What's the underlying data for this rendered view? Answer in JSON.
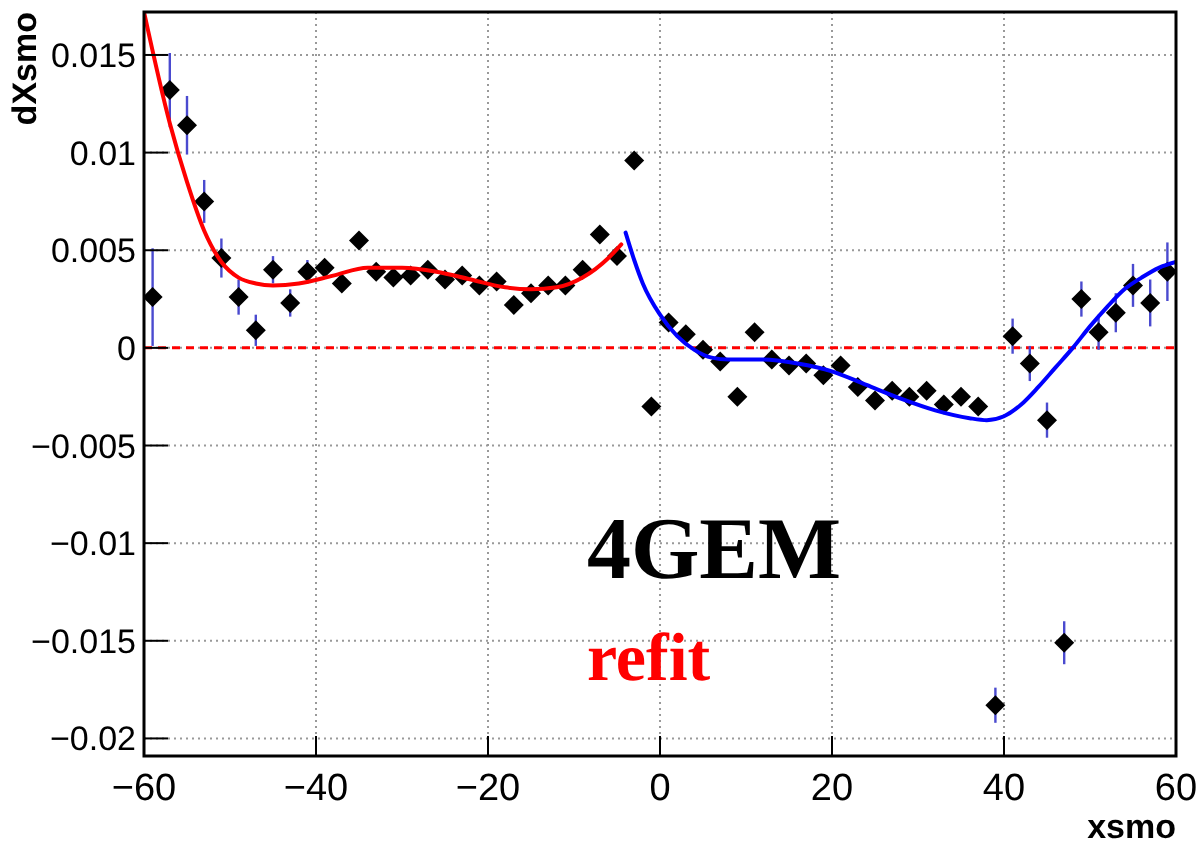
{
  "chart_data": {
    "type": "scatter",
    "xlabel": "xsmo",
    "ylabel": "dXsmo",
    "xlim": [
      -60,
      60
    ],
    "ylim": [
      -0.0209,
      0.0172
    ],
    "xticks": [
      {
        "value": -60,
        "label": "−60"
      },
      {
        "value": -40,
        "label": "−40"
      },
      {
        "value": -20,
        "label": "−20"
      },
      0,
      20,
      40,
      60
    ],
    "yticks": [
      {
        "value": -0.02,
        "label": "−0.02"
      },
      {
        "value": -0.015,
        "label": "−0.015"
      },
      {
        "value": -0.01,
        "label": "−0.01"
      },
      {
        "value": -0.005,
        "label": "−0.005"
      },
      0,
      0.005,
      0.01,
      0.015
    ],
    "grid": true,
    "series": [
      {
        "marker": "diamond",
        "color": "#000000",
        "x": [
          -59,
          -57,
          -55,
          -53,
          -51,
          -49,
          -47,
          -45,
          -43,
          -41,
          -39,
          -37,
          -35,
          -33,
          -31,
          -29,
          -27,
          -25,
          -23,
          -21,
          -19,
          -17,
          -15,
          -13,
          -11,
          -9,
          -7,
          -5,
          -3,
          -1,
          1,
          3,
          5,
          7,
          9,
          11,
          13,
          15,
          17,
          19,
          21,
          23,
          25,
          27,
          29,
          31,
          33,
          35,
          37,
          39,
          41,
          43,
          45,
          47,
          49,
          51,
          53,
          55,
          57,
          59
        ],
        "values": [
          0.0026,
          0.0132,
          0.0114,
          0.0075,
          0.0046,
          0.0026,
          0.0009,
          0.004,
          0.0023,
          0.0039,
          0.0041,
          0.0033,
          0.0055,
          0.0039,
          0.0036,
          0.0037,
          0.004,
          0.0035,
          0.0037,
          0.0032,
          0.0034,
          0.0022,
          0.0028,
          0.0032,
          0.0032,
          0.004,
          0.0058,
          0.0047,
          0.0096,
          -0.003,
          0.0013,
          0.0007,
          -0.0001,
          -0.0007,
          -0.0025,
          0.0008,
          -0.0006,
          -0.0009,
          -0.0008,
          -0.0014,
          -0.0009,
          -0.002,
          -0.0027,
          -0.0022,
          -0.0025,
          -0.0022,
          -0.0029,
          -0.0025,
          -0.003,
          -0.0183,
          0.0006,
          -0.0008,
          -0.0037,
          -0.0151,
          0.0025,
          0.0008,
          0.0018,
          0.0032,
          0.0023,
          0.0039
        ],
        "errors": [
          0.0025,
          0.0019,
          0.0015,
          0.0011,
          0.001,
          0.0009,
          0.0008,
          0.0007,
          0.0007,
          0.0006,
          null,
          null,
          null,
          null,
          null,
          null,
          null,
          null,
          null,
          null,
          null,
          null,
          null,
          null,
          null,
          null,
          null,
          null,
          null,
          null,
          null,
          null,
          null,
          null,
          null,
          null,
          null,
          null,
          null,
          null,
          null,
          null,
          null,
          null,
          null,
          null,
          null,
          null,
          null,
          0.0009,
          0.0009,
          0.0009,
          0.0009,
          0.0011,
          0.0009,
          0.0009,
          0.001,
          0.0011,
          0.0012,
          0.0015
        ]
      },
      {
        "type": "line",
        "color": "#ff0000",
        "x": [
          -60,
          -57,
          -55,
          -53,
          -51,
          -49,
          -47,
          -45,
          -42,
          -38,
          -34,
          -30,
          -26,
          -22,
          -18,
          -15,
          -12,
          -9,
          -6,
          -4.5
        ],
        "values": [
          0.0172,
          0.0115,
          0.0085,
          0.006,
          0.0044,
          0.0036,
          0.0033,
          0.0032,
          0.0033,
          0.0037,
          0.0041,
          0.0041,
          0.0039,
          0.0035,
          0.0031,
          0.003,
          0.0031,
          0.0036,
          0.0046,
          0.0053
        ]
      },
      {
        "type": "line",
        "color": "#0000ff",
        "x": [
          -4,
          -3,
          -2,
          0,
          2,
          4,
          6,
          8,
          12,
          16,
          20,
          24,
          28,
          32,
          36,
          38,
          40,
          42,
          44,
          46,
          48,
          50,
          52,
          54,
          56,
          58,
          60
        ],
        "values": [
          0.0059,
          0.0045,
          0.0033,
          0.0017,
          0.0006,
          -0.0001,
          -0.0005,
          -0.0006,
          -0.0006,
          -0.0008,
          -0.0012,
          -0.0019,
          -0.0026,
          -0.0032,
          -0.0036,
          -0.0037,
          -0.0035,
          -0.0029,
          -0.002,
          -0.001,
          0,
          0.0011,
          0.0021,
          0.003,
          0.0036,
          0.0041,
          0.0044
        ]
      }
    ],
    "ref_lines": [
      {
        "axis": "y",
        "value": 0,
        "color": "#ff0000",
        "line_style": "dashed"
      }
    ],
    "annotations": [
      "4GEM",
      "refit"
    ]
  }
}
